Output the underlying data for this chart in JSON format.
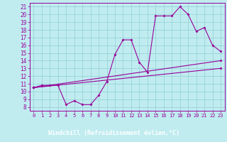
{
  "xlabel": "Windchill (Refroidissement éolien,°C)",
  "background_color": "#c0ecf0",
  "grid_color": "#98d4d8",
  "line_color": "#990099",
  "axis_bar_color": "#660066",
  "x_ticks": [
    0,
    1,
    2,
    3,
    4,
    5,
    6,
    7,
    8,
    9,
    10,
    11,
    12,
    13,
    14,
    15,
    16,
    17,
    18,
    19,
    20,
    21,
    22,
    23
  ],
  "y_ticks": [
    8,
    9,
    10,
    11,
    12,
    13,
    14,
    15,
    16,
    17,
    18,
    19,
    20,
    21
  ],
  "xlim": [
    -0.5,
    23.5
  ],
  "ylim": [
    7.5,
    21.5
  ],
  "series1_x": [
    0,
    1,
    2,
    3,
    4,
    5,
    6,
    7,
    8,
    9,
    10,
    11,
    12,
    13,
    14,
    15,
    16,
    17,
    18,
    19,
    20,
    21,
    22,
    23
  ],
  "series1_y": [
    10.5,
    10.8,
    10.8,
    10.8,
    8.3,
    8.8,
    8.3,
    8.3,
    9.5,
    11.3,
    14.8,
    16.7,
    16.7,
    13.8,
    12.5,
    19.8,
    19.8,
    19.8,
    21.0,
    20.0,
    17.8,
    18.3,
    16.0,
    15.2
  ],
  "series2_x": [
    0,
    23
  ],
  "series2_y": [
    10.5,
    14.0
  ],
  "series3_x": [
    0,
    23
  ],
  "series3_y": [
    10.5,
    13.0
  ]
}
